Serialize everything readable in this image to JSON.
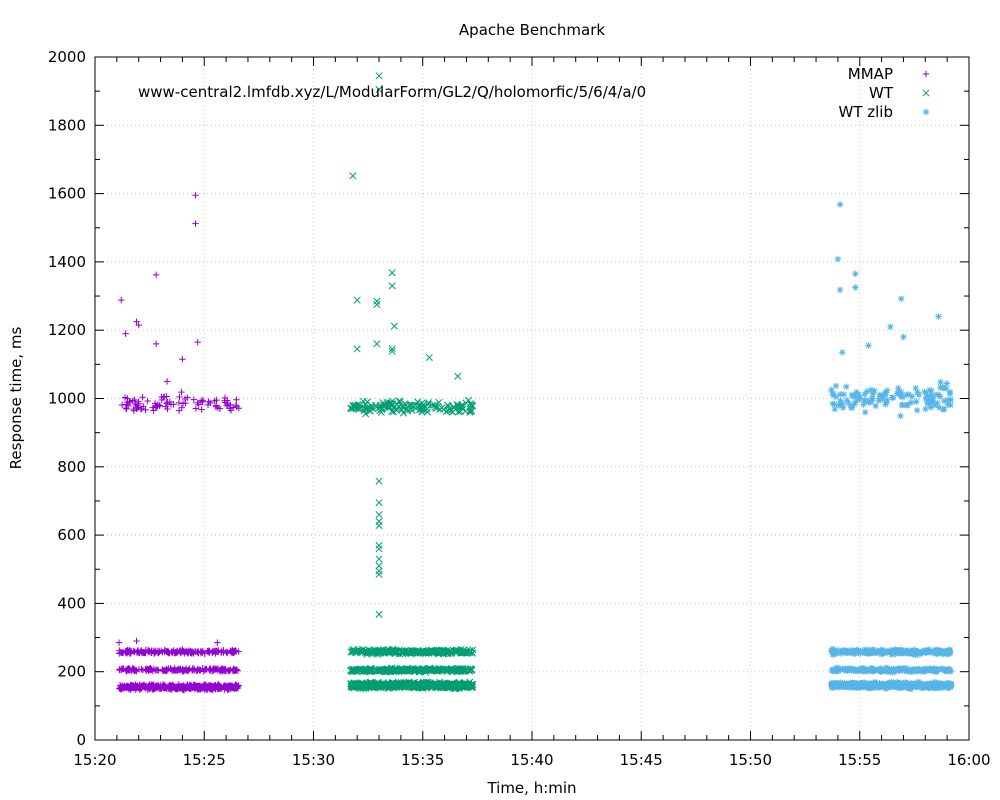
{
  "chart_data": {
    "type": "scatter",
    "title": "Apache Benchmark",
    "annotation": "www-central2.lmfdb.xyz/L/ModularForm/GL2/Q/holomorfic/5/6/4/a/0",
    "xlabel": "Time, h:min",
    "ylabel": "Response time, ms",
    "xlim_minutes": [
      0,
      40
    ],
    "ylim": [
      0,
      2000
    ],
    "x_tick_minutes": [
      0,
      5,
      10,
      15,
      20,
      25,
      30,
      35,
      40
    ],
    "x_tick_labels": [
      "15:20",
      "15:25",
      "15:30",
      "15:35",
      "15:40",
      "15:45",
      "15:50",
      "15:55",
      "16:00"
    ],
    "y_ticks": [
      0,
      200,
      400,
      600,
      800,
      1000,
      1200,
      1400,
      1600,
      1800,
      2000
    ],
    "grid": true,
    "legend_position": "top-right",
    "series": [
      {
        "name": "MMAP",
        "marker": "plus",
        "color": "#9400d3",
        "x_range_minutes": [
          1.1,
          6.6
        ],
        "bands": [
          {
            "center": 155,
            "spread": 10,
            "count": 520
          },
          {
            "center": 205,
            "spread": 7,
            "count": 180
          },
          {
            "center": 258,
            "spread": 8,
            "count": 180
          },
          {
            "center": 985,
            "spread": 40,
            "count": 90
          }
        ],
        "outliers": [
          {
            "x": 1.2,
            "y": 1288
          },
          {
            "x": 1.4,
            "y": 1190
          },
          {
            "x": 1.9,
            "y": 1225
          },
          {
            "x": 2.0,
            "y": 1215
          },
          {
            "x": 2.8,
            "y": 1362
          },
          {
            "x": 2.8,
            "y": 1160
          },
          {
            "x": 3.3,
            "y": 1050
          },
          {
            "x": 4.0,
            "y": 1115
          },
          {
            "x": 4.7,
            "y": 1165
          },
          {
            "x": 4.6,
            "y": 1512
          },
          {
            "x": 4.6,
            "y": 1595
          },
          {
            "x": 1.1,
            "y": 285
          },
          {
            "x": 1.9,
            "y": 290
          },
          {
            "x": 5.6,
            "y": 285
          }
        ]
      },
      {
        "name": "WT",
        "marker": "cross",
        "color": "#009e73",
        "x_range_minutes": [
          11.7,
          17.3
        ],
        "bands": [
          {
            "center": 160,
            "spread": 12,
            "count": 600
          },
          {
            "center": 205,
            "spread": 8,
            "count": 220
          },
          {
            "center": 258,
            "spread": 9,
            "count": 220
          },
          {
            "center": 975,
            "spread": 25,
            "count": 140
          }
        ],
        "outliers": [
          {
            "x": 11.8,
            "y": 1652
          },
          {
            "x": 13.0,
            "y": 1945
          },
          {
            "x": 13.0,
            "y": 1905
          },
          {
            "x": 12.0,
            "y": 1288
          },
          {
            "x": 12.9,
            "y": 1285
          },
          {
            "x": 12.9,
            "y": 1275
          },
          {
            "x": 13.6,
            "y": 1368
          },
          {
            "x": 13.6,
            "y": 1330
          },
          {
            "x": 13.7,
            "y": 1212
          },
          {
            "x": 12.0,
            "y": 1145
          },
          {
            "x": 12.9,
            "y": 1160
          },
          {
            "x": 13.6,
            "y": 1145
          },
          {
            "x": 13.6,
            "y": 1138
          },
          {
            "x": 15.3,
            "y": 1120
          },
          {
            "x": 16.6,
            "y": 1065
          },
          {
            "x": 13.0,
            "y": 758
          },
          {
            "x": 13.0,
            "y": 695
          },
          {
            "x": 13.0,
            "y": 660
          },
          {
            "x": 13.0,
            "y": 640
          },
          {
            "x": 13.0,
            "y": 628
          },
          {
            "x": 13.0,
            "y": 570
          },
          {
            "x": 13.0,
            "y": 560
          },
          {
            "x": 13.0,
            "y": 530
          },
          {
            "x": 13.0,
            "y": 510
          },
          {
            "x": 13.0,
            "y": 495
          },
          {
            "x": 13.0,
            "y": 485
          },
          {
            "x": 13.0,
            "y": 368
          }
        ]
      },
      {
        "name": "WT zlib",
        "marker": "star",
        "color": "#56b4e9",
        "x_range_minutes": [
          33.7,
          39.2
        ],
        "bands": [
          {
            "center": 160,
            "spread": 12,
            "count": 600
          },
          {
            "center": 205,
            "spread": 8,
            "count": 200
          },
          {
            "center": 258,
            "spread": 10,
            "count": 220
          },
          {
            "center": 1000,
            "spread": 55,
            "count": 120
          }
        ],
        "outliers": [
          {
            "x": 34.1,
            "y": 1568
          },
          {
            "x": 34.0,
            "y": 1408
          },
          {
            "x": 34.1,
            "y": 1318
          },
          {
            "x": 34.8,
            "y": 1365
          },
          {
            "x": 34.8,
            "y": 1325
          },
          {
            "x": 36.9,
            "y": 1292
          },
          {
            "x": 38.6,
            "y": 1240
          },
          {
            "x": 36.4,
            "y": 1210
          },
          {
            "x": 37.0,
            "y": 1180
          },
          {
            "x": 35.4,
            "y": 1155
          },
          {
            "x": 34.2,
            "y": 1135
          }
        ]
      }
    ]
  }
}
